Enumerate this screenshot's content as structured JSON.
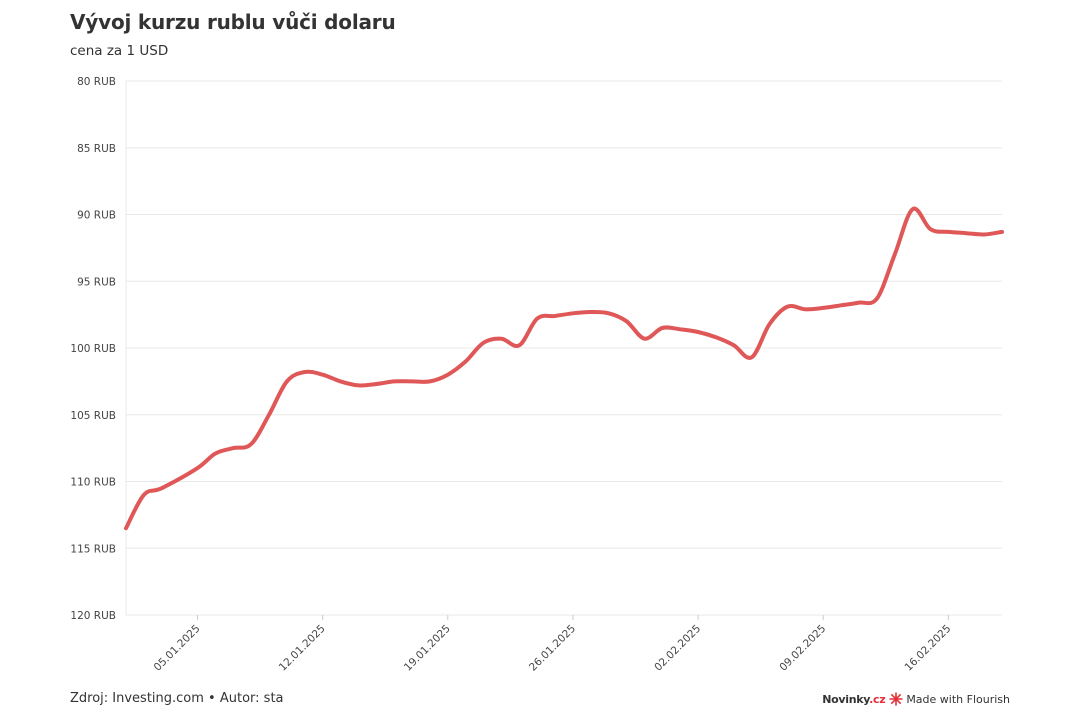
{
  "chart_title": "Vývoj kurzu rublu vůči dolaru",
  "chart_subtitle": "cena za 1 USD",
  "footer": {
    "source": "Zdroj: Investing.com • Autor: sta",
    "brand_name": "Novinky",
    "brand_suffix": ".cz",
    "made_with": "Made with Flourish"
  },
  "colors": {
    "line": "#e05757",
    "grid": "#e8e8e8",
    "axis": "#444444",
    "brand_accent": "#e5303a"
  },
  "chart_data": {
    "type": "line",
    "title": "Vývoj kurzu rublu vůči dolaru",
    "subtitle": "cena za 1 USD",
    "xlabel": "",
    "ylabel": "",
    "y_axis_reversed": true,
    "ylim": [
      80,
      120
    ],
    "y_ticks": [
      80,
      85,
      90,
      95,
      100,
      105,
      110,
      115,
      120
    ],
    "y_tick_labels": [
      "80 RUB",
      "85 RUB",
      "90 RUB",
      "95 RUB",
      "100 RUB",
      "105 RUB",
      "110 RUB",
      "115 RUB",
      "120 RUB"
    ],
    "x_ticks": [
      "2025-01-05",
      "2025-01-12",
      "2025-01-19",
      "2025-01-26",
      "2025-02-02",
      "2025-02-09",
      "2025-02-16"
    ],
    "x_tick_labels": [
      "05.01.2025",
      "12.01.2025",
      "19.01.2025",
      "26.01.2025",
      "02.02.2025",
      "09.02.2025",
      "16.02.2025"
    ],
    "xlim": [
      "2025-01-01",
      "2025-02-19"
    ],
    "grid": true,
    "series": [
      {
        "name": "",
        "color": "#e05757",
        "points": [
          [
            "2025-01-01",
            113.5
          ],
          [
            "2025-01-02",
            111.0
          ],
          [
            "2025-01-03",
            110.5
          ],
          [
            "2025-01-05",
            109.0
          ],
          [
            "2025-01-06",
            107.9
          ],
          [
            "2025-01-07",
            107.5
          ],
          [
            "2025-01-08",
            107.2
          ],
          [
            "2025-01-09",
            105.0
          ],
          [
            "2025-01-10",
            102.5
          ],
          [
            "2025-01-11",
            101.8
          ],
          [
            "2025-01-12",
            102.0
          ],
          [
            "2025-01-13",
            102.5
          ],
          [
            "2025-01-14",
            102.8
          ],
          [
            "2025-01-15",
            102.7
          ],
          [
            "2025-01-16",
            102.5
          ],
          [
            "2025-01-17",
            102.5
          ],
          [
            "2025-01-18",
            102.5
          ],
          [
            "2025-01-19",
            102.0
          ],
          [
            "2025-01-20",
            101.0
          ],
          [
            "2025-01-21",
            99.6
          ],
          [
            "2025-01-22",
            99.3
          ],
          [
            "2025-01-23",
            99.8
          ],
          [
            "2025-01-24",
            97.8
          ],
          [
            "2025-01-25",
            97.6
          ],
          [
            "2025-01-26",
            97.4
          ],
          [
            "2025-01-27",
            97.3
          ],
          [
            "2025-01-28",
            97.4
          ],
          [
            "2025-01-29",
            98.0
          ],
          [
            "2025-01-30",
            99.3
          ],
          [
            "2025-01-31",
            98.5
          ],
          [
            "2025-02-01",
            98.6
          ],
          [
            "2025-02-02",
            98.8
          ],
          [
            "2025-02-03",
            99.2
          ],
          [
            "2025-02-04",
            99.8
          ],
          [
            "2025-02-05",
            100.7
          ],
          [
            "2025-02-06",
            98.2
          ],
          [
            "2025-02-07",
            96.9
          ],
          [
            "2025-02-08",
            97.1
          ],
          [
            "2025-02-09",
            97.0
          ],
          [
            "2025-02-10",
            96.8
          ],
          [
            "2025-02-11",
            96.6
          ],
          [
            "2025-02-12",
            96.3
          ],
          [
            "2025-02-13",
            93.0
          ],
          [
            "2025-02-14",
            89.6
          ],
          [
            "2025-02-15",
            91.1
          ],
          [
            "2025-02-16",
            91.3
          ],
          [
            "2025-02-17",
            91.4
          ],
          [
            "2025-02-18",
            91.5
          ],
          [
            "2025-02-19",
            91.3
          ]
        ]
      }
    ]
  }
}
